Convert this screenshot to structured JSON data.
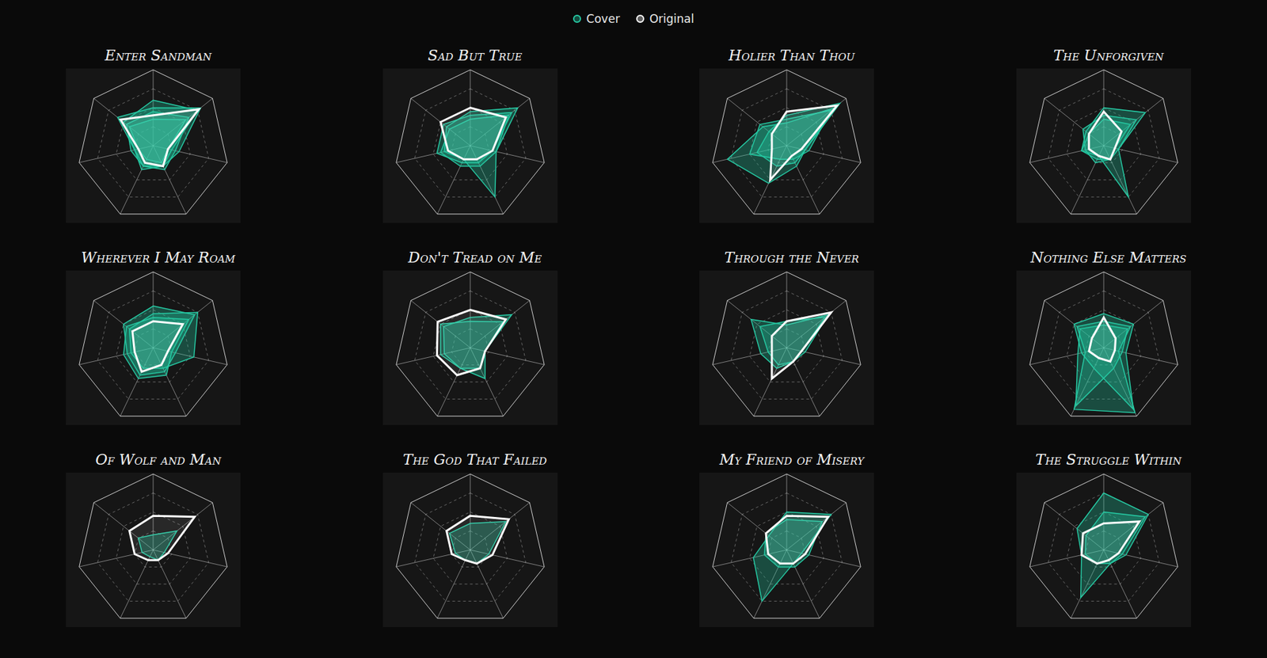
{
  "chart_data": [
    {
      "type": "radar",
      "title": "Enter Sandman",
      "categories": [
        null,
        null,
        null,
        null,
        null,
        null,
        null
      ],
      "ylim": [
        0,
        1
      ],
      "yticks": [
        0,
        0.25,
        0.5,
        0.75,
        1
      ],
      "grid": true,
      "tick_labels": false,
      "series": [
        {
          "name": "Cover",
          "color": "#26c9a3",
          "values": [
            0.6,
            0.75,
            0.25,
            0.3,
            0.3,
            0.25,
            0.5
          ]
        },
        {
          "name": "Cover",
          "color": "#26c9a3",
          "values": [
            0.45,
            0.6,
            0.3,
            0.35,
            0.3,
            0.3,
            0.45
          ]
        },
        {
          "name": "Cover",
          "color": "#26c9a3",
          "values": [
            0.35,
            0.55,
            0.2,
            0.25,
            0.2,
            0.2,
            0.4
          ]
        },
        {
          "name": "Cover",
          "color": "#26c9a3",
          "values": [
            0.5,
            0.8,
            0.35,
            0.3,
            0.35,
            0.25,
            0.6
          ]
        },
        {
          "name": "Original",
          "color": "#ffffff",
          "values": [
            0.4,
            0.77,
            0.2,
            0.3,
            0.25,
            0.2,
            0.55
          ]
        }
      ]
    },
    {
      "type": "radar",
      "title": "Sad But True",
      "categories": [
        null,
        null,
        null,
        null,
        null,
        null,
        null
      ],
      "ylim": [
        0,
        1
      ],
      "yticks": [
        0,
        0.25,
        0.5,
        0.75,
        1
      ],
      "grid": true,
      "tick_labels": false,
      "series": [
        {
          "name": "Cover",
          "color": "#26c9a3",
          "values": [
            0.45,
            0.8,
            0.35,
            0.75,
            0.2,
            0.35,
            0.4
          ]
        },
        {
          "name": "Cover",
          "color": "#26c9a3",
          "values": [
            0.4,
            0.7,
            0.3,
            0.25,
            0.25,
            0.45,
            0.45
          ]
        },
        {
          "name": "Cover",
          "color": "#26c9a3",
          "values": [
            0.35,
            0.65,
            0.35,
            0.3,
            0.3,
            0.4,
            0.35
          ]
        },
        {
          "name": "Original",
          "color": "#ffffff",
          "values": [
            0.5,
            0.6,
            0.3,
            0.2,
            0.2,
            0.3,
            0.5
          ]
        }
      ]
    },
    {
      "type": "radar",
      "title": "Holier Than Thou",
      "categories": [
        null,
        null,
        null,
        null,
        null,
        null,
        null
      ],
      "ylim": [
        0,
        1
      ],
      "yticks": [
        0,
        0.25,
        0.5,
        0.75,
        1
      ],
      "grid": true,
      "tick_labels": false,
      "series": [
        {
          "name": "Cover",
          "color": "#26c9a3",
          "values": [
            0.3,
            0.8,
            0.25,
            0.3,
            0.55,
            0.8,
            0.4
          ]
        },
        {
          "name": "Cover",
          "color": "#26c9a3",
          "values": [
            0.35,
            0.75,
            0.3,
            0.2,
            0.2,
            0.5,
            0.45
          ]
        },
        {
          "name": "Cover",
          "color": "#26c9a3",
          "values": [
            0.4,
            0.9,
            0.25,
            0.25,
            0.3,
            0.4,
            0.3
          ]
        },
        {
          "name": "Original",
          "color": "#ffffff",
          "values": [
            0.45,
            0.85,
            0.2,
            0.15,
            0.5,
            0.2,
            0.25
          ]
        }
      ]
    },
    {
      "type": "radar",
      "title": "The Unforgiven",
      "categories": [
        null,
        null,
        null,
        null,
        null,
        null,
        null
      ],
      "ylim": [
        0,
        1
      ],
      "yticks": [
        0,
        0.25,
        0.5,
        0.75,
        1
      ],
      "grid": true,
      "tick_labels": false,
      "series": [
        {
          "name": "Cover",
          "color": "#26c9a3",
          "values": [
            0.5,
            0.7,
            0.2,
            0.75,
            0.15,
            0.3,
            0.3
          ]
        },
        {
          "name": "Cover",
          "color": "#26c9a3",
          "values": [
            0.4,
            0.55,
            0.2,
            0.2,
            0.25,
            0.25,
            0.35
          ]
        },
        {
          "name": "Cover",
          "color": "#26c9a3",
          "values": [
            0.35,
            0.45,
            0.15,
            0.2,
            0.2,
            0.3,
            0.25
          ]
        },
        {
          "name": "Original",
          "color": "#ffffff",
          "values": [
            0.45,
            0.3,
            0.15,
            0.2,
            0.15,
            0.2,
            0.25
          ]
        }
      ]
    },
    {
      "type": "radar",
      "title": "Wherever I May Roam",
      "categories": [
        null,
        null,
        null,
        null,
        null,
        null,
        null
      ],
      "ylim": [
        0,
        1
      ],
      "yticks": [
        0,
        0.25,
        0.5,
        0.75,
        1
      ],
      "grid": true,
      "tick_labels": false,
      "series": [
        {
          "name": "Cover",
          "color": "#26c9a3",
          "values": [
            0.55,
            0.7,
            0.3,
            0.35,
            0.4,
            0.35,
            0.5
          ]
        },
        {
          "name": "Cover",
          "color": "#26c9a3",
          "values": [
            0.45,
            0.75,
            0.55,
            0.3,
            0.3,
            0.3,
            0.4
          ]
        },
        {
          "name": "Cover",
          "color": "#26c9a3",
          "values": [
            0.4,
            0.6,
            0.25,
            0.4,
            0.45,
            0.4,
            0.45
          ]
        },
        {
          "name": "Original",
          "color": "#ffffff",
          "values": [
            0.35,
            0.5,
            0.2,
            0.25,
            0.35,
            0.25,
            0.35
          ]
        }
      ]
    },
    {
      "type": "radar",
      "title": "Don't Tread on Me",
      "categories": [
        null,
        null,
        null,
        null,
        null,
        null,
        null
      ],
      "ylim": [
        0,
        1
      ],
      "yticks": [
        0,
        0.25,
        0.5,
        0.75,
        1
      ],
      "grid": true,
      "tick_labels": false,
      "series": [
        {
          "name": "Cover",
          "color": "#26c9a3",
          "values": [
            0.4,
            0.7,
            0.2,
            0.3,
            0.3,
            0.35,
            0.45
          ]
        },
        {
          "name": "Cover",
          "color": "#26c9a3",
          "values": [
            0.35,
            0.55,
            0.2,
            0.45,
            0.3,
            0.4,
            0.5
          ]
        },
        {
          "name": "Original",
          "color": "#ffffff",
          "values": [
            0.5,
            0.6,
            0.2,
            0.3,
            0.4,
            0.45,
            0.55
          ]
        }
      ]
    },
    {
      "type": "radar",
      "title": "Through the Never",
      "categories": [
        null,
        null,
        null,
        null,
        null,
        null,
        null
      ],
      "ylim": [
        0,
        1
      ],
      "yticks": [
        0,
        0.25,
        0.5,
        0.75,
        1
      ],
      "grid": true,
      "tick_labels": false,
      "series": [
        {
          "name": "Cover",
          "color": "#26c9a3",
          "values": [
            0.3,
            0.7,
            0.25,
            0.2,
            0.3,
            0.35,
            0.6
          ]
        },
        {
          "name": "Cover",
          "color": "#26c9a3",
          "values": [
            0.35,
            0.65,
            0.2,
            0.2,
            0.25,
            0.25,
            0.45
          ]
        },
        {
          "name": "Original",
          "color": "#ffffff",
          "values": [
            0.35,
            0.75,
            0.2,
            0.2,
            0.45,
            0.2,
            0.25
          ]
        }
      ]
    },
    {
      "type": "radar",
      "title": "Nothing Else Matters",
      "categories": [
        null,
        null,
        null,
        null,
        null,
        null,
        null
      ],
      "ylim": [
        0,
        1
      ],
      "yticks": [
        0,
        0.25,
        0.5,
        0.75,
        1
      ],
      "grid": true,
      "tick_labels": false,
      "series": [
        {
          "name": "Cover",
          "color": "#26c9a3",
          "values": [
            0.35,
            0.45,
            0.2,
            0.95,
            0.9,
            0.25,
            0.45
          ]
        },
        {
          "name": "Cover",
          "color": "#26c9a3",
          "values": [
            0.45,
            0.5,
            0.3,
            0.9,
            0.3,
            0.3,
            0.5
          ]
        },
        {
          "name": "Cover",
          "color": "#26c9a3",
          "values": [
            0.3,
            0.4,
            0.25,
            0.3,
            0.85,
            0.35,
            0.4
          ]
        },
        {
          "name": "Original",
          "color": "#ffffff",
          "values": [
            0.4,
            0.2,
            0.15,
            0.2,
            0.15,
            0.2,
            0.2
          ]
        }
      ]
    },
    {
      "type": "radar",
      "title": "Of Wolf and Man",
      "categories": [
        null,
        null,
        null,
        null,
        null,
        null,
        null
      ],
      "ylim": [
        0,
        1
      ],
      "yticks": [
        0,
        0.25,
        0.5,
        0.75,
        1
      ],
      "grid": true,
      "tick_labels": false,
      "series": [
        {
          "name": "Cover",
          "color": "#26c9a3",
          "values": [
            0.2,
            0.4,
            0.15,
            0.15,
            0.1,
            0.15,
            0.25
          ]
        },
        {
          "name": "Original",
          "color": "#ffffff",
          "values": [
            0.45,
            0.7,
            0.2,
            0.15,
            0.15,
            0.25,
            0.4
          ]
        }
      ]
    },
    {
      "type": "radar",
      "title": "The God That Failed",
      "categories": [
        null,
        null,
        null,
        null,
        null,
        null,
        null
      ],
      "ylim": [
        0,
        1
      ],
      "yticks": [
        0,
        0.25,
        0.5,
        0.75,
        1
      ],
      "grid": true,
      "tick_labels": false,
      "series": [
        {
          "name": "Cover",
          "color": "#26c9a3",
          "values": [
            0.35,
            0.6,
            0.25,
            0.2,
            0.15,
            0.2,
            0.35
          ]
        },
        {
          "name": "Original",
          "color": "#ffffff",
          "values": [
            0.45,
            0.65,
            0.3,
            0.2,
            0.15,
            0.25,
            0.4
          ]
        }
      ]
    },
    {
      "type": "radar",
      "title": "My Friend of Misery",
      "categories": [
        null,
        null,
        null,
        null,
        null,
        null,
        null
      ],
      "ylim": [
        0,
        1
      ],
      "yticks": [
        0,
        0.25,
        0.5,
        0.75,
        1
      ],
      "grid": true,
      "tick_labels": false,
      "series": [
        {
          "name": "Cover",
          "color": "#26c9a3",
          "values": [
            0.5,
            0.75,
            0.2,
            0.2,
            0.75,
            0.45,
            0.3
          ]
        },
        {
          "name": "Cover",
          "color": "#26c9a3",
          "values": [
            0.4,
            0.6,
            0.3,
            0.25,
            0.25,
            0.3,
            0.35
          ]
        },
        {
          "name": "Original",
          "color": "#ffffff",
          "values": [
            0.45,
            0.7,
            0.25,
            0.2,
            0.2,
            0.25,
            0.35
          ]
        }
      ]
    },
    {
      "type": "radar",
      "title": "The Struggle Within",
      "categories": [
        null,
        null,
        null,
        null,
        null,
        null,
        null
      ],
      "ylim": [
        0,
        1
      ],
      "yticks": [
        0,
        0.25,
        0.5,
        0.75,
        1
      ],
      "grid": true,
      "tick_labels": false,
      "series": [
        {
          "name": "Cover",
          "color": "#26c9a3",
          "values": [
            0.75,
            0.75,
            0.3,
            0.2,
            0.7,
            0.3,
            0.45
          ]
        },
        {
          "name": "Cover",
          "color": "#26c9a3",
          "values": [
            0.5,
            0.7,
            0.25,
            0.2,
            0.2,
            0.25,
            0.3
          ]
        },
        {
          "name": "Original",
          "color": "#ffffff",
          "values": [
            0.35,
            0.6,
            0.2,
            0.15,
            0.2,
            0.3,
            0.35
          ]
        }
      ]
    }
  ]
}
